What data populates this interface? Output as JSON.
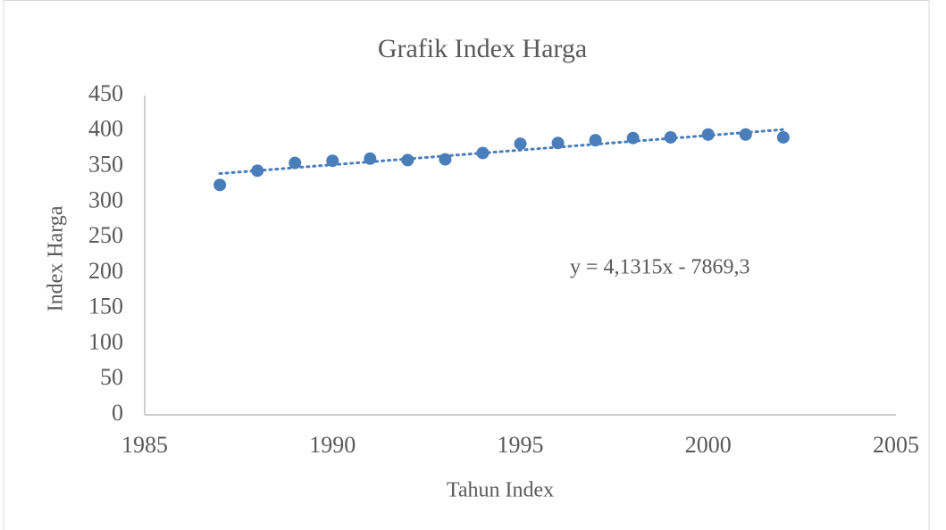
{
  "chart_data": {
    "type": "scatter",
    "title": "Grafik Index Harga",
    "x_label": "Tahun Index",
    "y_label": "Index Harga",
    "x": [
      1987,
      1988,
      1989,
      1990,
      1991,
      1992,
      1993,
      1994,
      1995,
      1996,
      1997,
      1998,
      1999,
      2000,
      2001,
      2002
    ],
    "series": [
      {
        "name": "Index Harga",
        "color": "#4a7ebb",
        "values": [
          324,
          344,
          355,
          358,
          361,
          359,
          360,
          369,
          382,
          383,
          387,
          390,
          391,
          395,
          395,
          391
        ]
      }
    ],
    "trendline": {
      "label": "y = 4,1315x - 7869,3",
      "slope": 4.1315,
      "intercept": -7869.3
    },
    "xlim": [
      1985,
      2005
    ],
    "xticks": [
      1985,
      1990,
      1995,
      2000,
      2005
    ],
    "ylim": [
      0,
      450
    ],
    "yticks": [
      0,
      50,
      100,
      150,
      200,
      250,
      300,
      350,
      400,
      450
    ],
    "grid": false
  }
}
